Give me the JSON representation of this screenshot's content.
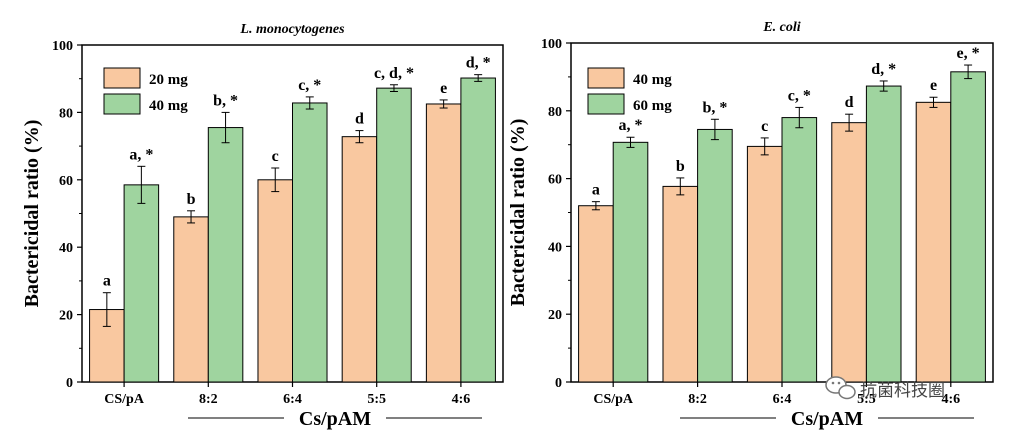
{
  "chart_data": [
    {
      "type": "bar",
      "title": "L. monocytogenes",
      "ylabel": "Bactericidal ratio (%)",
      "xlabel": "Cs/pAM",
      "ylim": [
        0,
        100
      ],
      "yticks": [
        0,
        20,
        40,
        60,
        80,
        100
      ],
      "categories": [
        "CS/pA",
        "8:2",
        "6:4",
        "5:5",
        "4:6"
      ],
      "legend_position": "top-left",
      "series": [
        {
          "name": "20 mg",
          "color": "#f9c8a0",
          "values": [
            21.5,
            49,
            60,
            72.8,
            82.5
          ],
          "errors": [
            5,
            1.8,
            3.5,
            1.8,
            1.2
          ],
          "labels": [
            "a",
            "b",
            "c",
            "d",
            "e"
          ]
        },
        {
          "name": "40 mg",
          "color": "#9fd49f",
          "values": [
            58.5,
            75.5,
            82.8,
            87.2,
            90.2
          ],
          "errors": [
            5.5,
            4.5,
            1.8,
            1.0,
            1.0
          ],
          "labels": [
            "a, *",
            "b, *",
            "c, *",
            "c, d, *",
            "d, *"
          ]
        }
      ]
    },
    {
      "type": "bar",
      "title": "E. coli",
      "ylabel": "Bactericidal ratio (%)",
      "xlabel": "Cs/pAM",
      "ylim": [
        0,
        100
      ],
      "yticks": [
        0,
        20,
        40,
        60,
        80,
        100
      ],
      "categories": [
        "CS/pA",
        "8:2",
        "6:4",
        "5:5",
        "4:6"
      ],
      "legend_position": "top-left",
      "series": [
        {
          "name": "40 mg",
          "color": "#f9c8a0",
          "values": [
            52,
            57.7,
            69.5,
            76.5,
            82.5
          ],
          "errors": [
            1.2,
            2.5,
            2.5,
            2.5,
            1.5
          ],
          "labels": [
            "a",
            "b",
            "c",
            "d",
            "e"
          ]
        },
        {
          "name": "60 mg",
          "color": "#9fd49f",
          "values": [
            70.7,
            74.5,
            78,
            87.3,
            91.5
          ],
          "errors": [
            1.5,
            3.0,
            3.0,
            1.5,
            2.0
          ],
          "labels": [
            "a, *",
            "b, *",
            "c, *",
            "d, *",
            "e, *"
          ]
        }
      ]
    }
  ],
  "shared_xlabel": "Cs/pAM",
  "watermark": "抗菌科技圈"
}
